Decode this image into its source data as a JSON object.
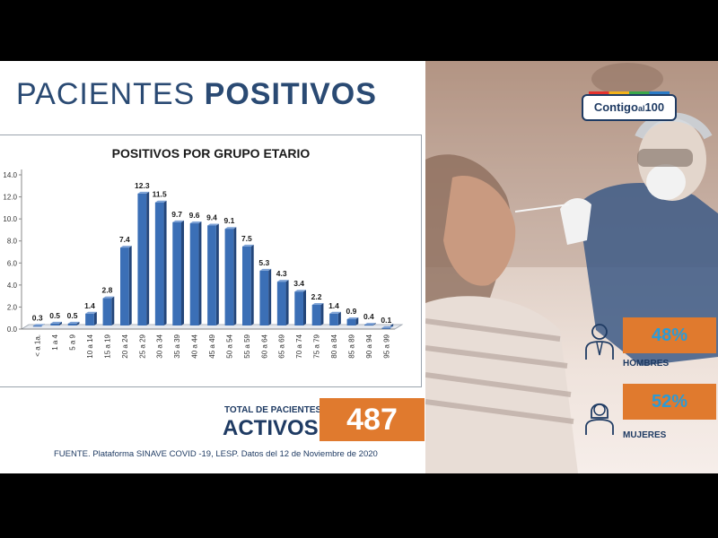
{
  "slide": {
    "title_light": "PACIENTES ",
    "title_bold": "POSITIVOS",
    "total_label_small": "TOTAL DE PACIENTES",
    "total_label_big": "ACTIVOS",
    "total_value": "487",
    "source": "FUENTE. Plataforma SINAVE COVID -19, LESP. Datos del 12 de Noviembre de 2020"
  },
  "photo_panel": {
    "logo_main": "Contigo",
    "logo_small": "al",
    "logo_num": "100",
    "men_pct": "48%",
    "men_label": "HOMBRES",
    "women_pct": "52%",
    "women_label": "MUJERES",
    "men_icon": "man-icon",
    "women_icon": "woman-icon"
  },
  "chart_data": {
    "type": "bar",
    "title": "POSITIVOS POR GRUPO ETARIO",
    "categories": [
      "< a 1a.",
      "1 a 4",
      "5 a 9",
      "10 a 14",
      "15 a 19",
      "20 a 24",
      "25 a 29",
      "30 a 34",
      "35 a 39",
      "40 a 44",
      "45 a 49",
      "50 a 54",
      "55 a 59",
      "60 a 64",
      "65 a 69",
      "70 a 74",
      "75 a 79",
      "80 a 84",
      "85 a 89",
      "90 a 94",
      "95 a 99"
    ],
    "values": [
      0.3,
      0.5,
      0.5,
      1.4,
      2.8,
      7.4,
      12.3,
      11.5,
      9.7,
      9.6,
      9.4,
      9.1,
      7.5,
      5.3,
      4.3,
      3.4,
      2.2,
      1.4,
      0.9,
      0.4,
      0.1
    ],
    "value_labels": [
      "0.3",
      "0.5",
      "0.5",
      "1.4",
      "2.8",
      "7.4",
      "12.3",
      "11.5",
      "9.7",
      "9.6",
      "9.4",
      "9.1",
      "7.5",
      "5.3",
      "4.3",
      "3.4",
      "2.2",
      "1.4",
      "0.9",
      "0.4",
      "0.1"
    ],
    "ylim": [
      0,
      14
    ],
    "yticks": [
      "0.0",
      "2.0",
      "4.0",
      "6.0",
      "8.0",
      "10.0",
      "12.0",
      "14.0"
    ],
    "bar_color": "#3b6fb6",
    "grid": false,
    "legend": "none"
  }
}
